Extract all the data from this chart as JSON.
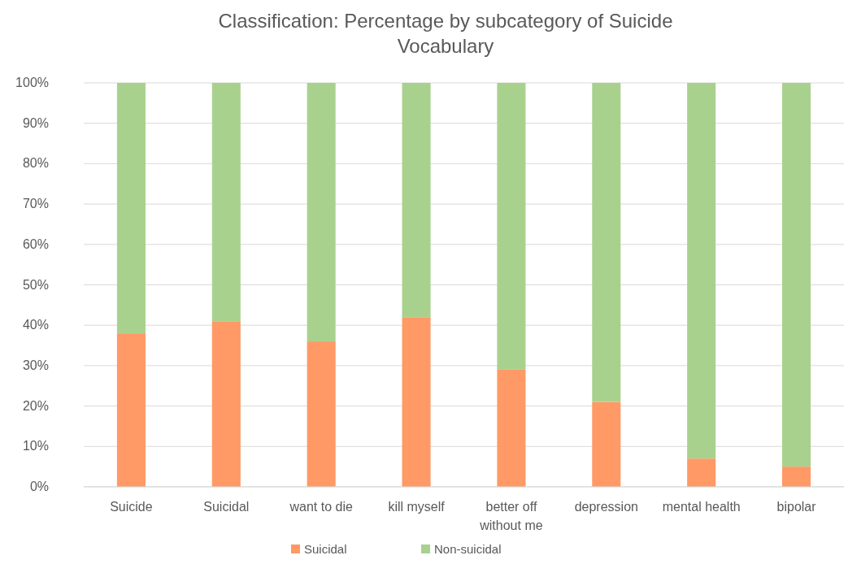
{
  "chart_data": {
    "type": "bar",
    "stacked": true,
    "title": "Classification: Percentage by subcategory of Suicide Vocabulary",
    "categories": [
      "Suicide",
      "Suicidal",
      "want to die",
      "kill myself",
      "better off without me",
      "depression",
      "mental health",
      "bipolar"
    ],
    "series": [
      {
        "name": "Suicidal",
        "color": "#ff9966",
        "values": [
          38,
          41,
          36,
          42,
          29,
          21,
          7,
          5
        ]
      },
      {
        "name": "Non-suicidal",
        "color": "#a9d18e",
        "values": [
          62,
          59,
          64,
          58,
          71,
          79,
          93,
          95
        ]
      }
    ],
    "ylim": [
      0,
      100
    ],
    "yticks": [
      {
        "value": 0,
        "label": "0%"
      },
      {
        "value": 10,
        "label": "10%"
      },
      {
        "value": 20,
        "label": "20%"
      },
      {
        "value": 30,
        "label": "30%"
      },
      {
        "value": 40,
        "label": "40%"
      },
      {
        "value": 50,
        "label": "50%"
      },
      {
        "value": 60,
        "label": "60%"
      },
      {
        "value": 70,
        "label": "70%"
      },
      {
        "value": 80,
        "label": "80%"
      },
      {
        "value": 90,
        "label": "90%"
      },
      {
        "value": 100,
        "label": "100%"
      }
    ],
    "grid": "y",
    "legend": "bottom"
  }
}
